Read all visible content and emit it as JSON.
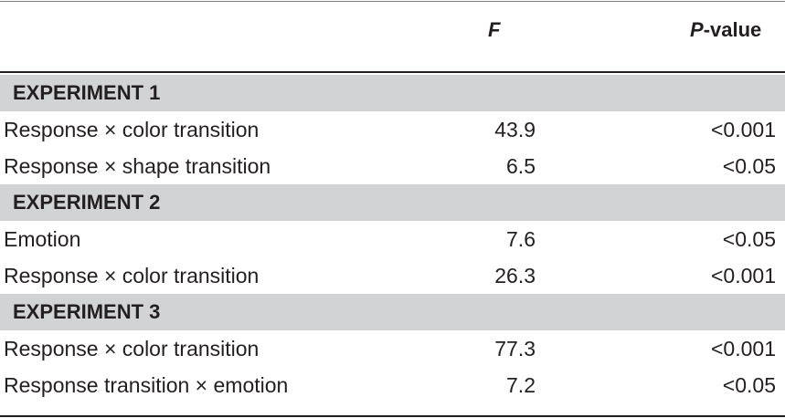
{
  "header": {
    "f_label": "F",
    "p_label_italic": "P",
    "p_label_rest": "-value"
  },
  "rows": [
    {
      "type": "section",
      "label": "EXPERIMENT 1"
    },
    {
      "type": "data",
      "label": "Response × color transition",
      "f": "43.9",
      "p": "<0.001"
    },
    {
      "type": "data",
      "label": "Response × shape transition",
      "f": "6.5",
      "p": "<0.05"
    },
    {
      "type": "section",
      "label": "EXPERIMENT 2"
    },
    {
      "type": "data",
      "label": "Emotion",
      "f": "7.6",
      "p": "<0.05"
    },
    {
      "type": "data",
      "label": "Response × color transition",
      "f": "26.3",
      "p": "<0.001"
    },
    {
      "type": "section",
      "label": "EXPERIMENT 3"
    },
    {
      "type": "data",
      "label": "Response × color transition",
      "f": "77.3",
      "p": "<0.001"
    },
    {
      "type": "data",
      "label": "Response transition × emotion",
      "f": "7.2",
      "p": "<0.05"
    }
  ]
}
